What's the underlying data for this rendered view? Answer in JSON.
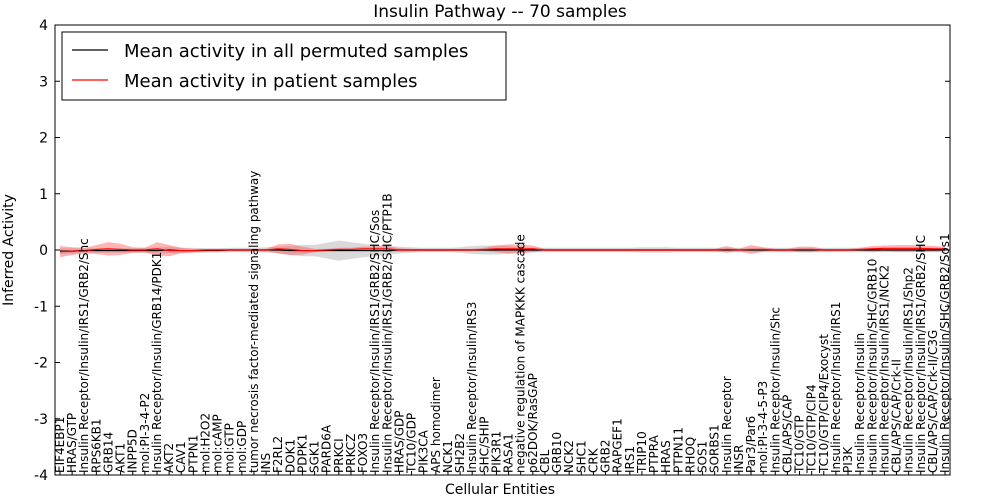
{
  "chart_data": {
    "type": "line",
    "title": "Insulin Pathway -- 70 samples",
    "xlabel": "Cellular Entities",
    "ylabel": "Inferred Activity",
    "ylim": [
      -4,
      4
    ],
    "yticks": [
      -4,
      -3,
      -2,
      -1,
      0,
      1,
      2,
      3,
      4
    ],
    "legend_position": "top-left",
    "categories": [
      "EIF4EBP1",
      "HRAS/GTP",
      "Insulin Receptor/Insulin/IRS1/GRB2/Shc",
      "RPS6KB1",
      "GRB14",
      "AKT1",
      "INPP5D",
      "mol:PI-3-4-P2",
      "Insulin Receptor/Insulin/GRB14/PDK1",
      "AKT2",
      "CAV1",
      "PTPN1",
      "mol:H2O2",
      "mol:cAMP",
      "mol:GTP",
      "mol:GDP",
      "tumor necrosis factor-mediated signaling pathway",
      "INS",
      "F2RL2",
      "DOK1",
      "PDPK1",
      "SGK1",
      "PARD6A",
      "PRKCI",
      "PRKCZ",
      "FOXO3",
      "Insulin Receptor/Insulin/IRS1/GRB2/SHC/Sos",
      "Insulin Receptor/Insulin/IRS1/GRB2/SHC/PTP1B",
      "HRAS/GDP",
      "TC10/GDP",
      "PIK3CA",
      "APS homodimer",
      "NCK1",
      "SH2B2",
      "Insulin Receptor/Insulin/IRS3",
      "SHC/SHIP",
      "PIK3R1",
      "RASA1",
      "negative regulation of MAPKKK cascade",
      "p62DOK/RasGAP",
      "CBL",
      "GRB10",
      "NCK2",
      "SHC1",
      "CRK",
      "GRB2",
      "RAPGEF1",
      "IRS1",
      "TRIP10",
      "PTPRA",
      "HRAS",
      "PTPN11",
      "RHOQ",
      "SOS1",
      "SORBS1",
      "Insulin Receptor",
      "INSR",
      "Par3/Par6",
      "mol:PI-3-4-5-P3",
      "Insulin Receptor/Insulin/Shc",
      "CBL/APS/CAP",
      "TC10/GTP",
      "TC10/GTP/CIP4",
      "TC10/GTP/CIP4/Exocyst",
      "Insulin Receptor/Insulin/IRS1",
      "PI3K",
      "Insulin Receptor/Insulin",
      "Insulin Receptor/Insulin/SHC/GRB10",
      "Insulin Receptor/Insulin/IRS1/NCK2",
      "CBL/APS/CAP/Crk-II",
      "Insulin Receptor/Insulin/IRS1/Shp2",
      "Insulin Receptor/Insulin/IRS1/GRB2/SHC",
      "CBL/APS/CAP/Crk-II/C3G",
      "Insulin Receptor/Insulin/SHC/GRB2/Sos1"
    ],
    "series": [
      {
        "name": "Mean activity in all permuted samples",
        "color": "#000000",
        "values": [
          -0.02,
          -0.02,
          -0.01,
          -0.01,
          -0.01,
          -0.01,
          -0.01,
          -0.01,
          -0.01,
          0,
          -0.01,
          -0.01,
          -0.01,
          -0.01,
          0,
          0,
          0,
          0,
          0,
          -0.01,
          -0.01,
          -0.01,
          -0.01,
          -0.01,
          -0.01,
          -0.01,
          -0.01,
          -0.01,
          0,
          0,
          0,
          0,
          0,
          0,
          0,
          0,
          0,
          0,
          0,
          0,
          0,
          0,
          0,
          0,
          0,
          0,
          0,
          0,
          0,
          0,
          0,
          0,
          0,
          0,
          0,
          0,
          0,
          0,
          0,
          0,
          0,
          0,
          0,
          0,
          0,
          0,
          0,
          0,
          0,
          0,
          0,
          0,
          0,
          0
        ],
        "band": [
          0.05,
          0.05,
          0.04,
          0.04,
          0.04,
          0.04,
          0.04,
          0.05,
          0.05,
          0.06,
          0.05,
          0.05,
          0.04,
          0.04,
          0.04,
          0.04,
          0.04,
          0.05,
          0.06,
          0.08,
          0.1,
          0.1,
          0.14,
          0.18,
          0.15,
          0.12,
          0.1,
          0.08,
          0.06,
          0.05,
          0.04,
          0.04,
          0.04,
          0.05,
          0.07,
          0.08,
          0.08,
          0.07,
          0.05,
          0.04,
          0.04,
          0.04,
          0.04,
          0.04,
          0.04,
          0.04,
          0.04,
          0.04,
          0.05,
          0.05,
          0.05,
          0.04,
          0.04,
          0.04,
          0.04,
          0.04,
          0.04,
          0.04,
          0.04,
          0.04,
          0.04,
          0.04,
          0.04,
          0.04,
          0.04,
          0.04,
          0.04,
          0.04,
          0.04,
          0.04,
          0.04,
          0.04,
          0.04,
          0.04
        ]
      },
      {
        "name": "Mean activity in patient samples",
        "color": "#ff0000",
        "values": [
          -0.03,
          -0.02,
          -0.01,
          0.01,
          0.02,
          0.01,
          0,
          0,
          0.02,
          -0.01,
          -0.01,
          -0.01,
          0,
          0,
          0,
          0,
          0,
          0,
          0.02,
          0.01,
          -0.01,
          -0.01,
          0,
          0.01,
          0.01,
          0.02,
          0.02,
          0.02,
          0,
          0,
          0,
          0,
          0,
          0,
          0,
          0.01,
          0.02,
          0.02,
          0.02,
          0.02,
          0,
          0,
          0,
          0,
          0,
          0,
          0,
          0,
          0,
          0,
          0,
          0,
          0,
          0,
          0,
          0.01,
          0,
          0.01,
          0.01,
          0,
          0,
          0.01,
          0.01,
          0,
          0,
          0,
          0.01,
          0.02,
          0.03,
          0.03,
          0.03,
          0.03,
          0.02,
          0.02
        ],
        "band": [
          0.1,
          0.07,
          0.05,
          0.08,
          0.12,
          0.1,
          0.05,
          0.04,
          0.12,
          0.1,
          0.05,
          0.03,
          0.02,
          0.02,
          0.02,
          0.02,
          0.02,
          0.02,
          0.08,
          0.1,
          0.07,
          0.03,
          0.02,
          0.03,
          0.03,
          0.04,
          0.04,
          0.05,
          0.03,
          0.02,
          0.02,
          0.02,
          0.02,
          0.02,
          0.02,
          0.03,
          0.06,
          0.08,
          0.08,
          0.06,
          0.02,
          0.02,
          0.02,
          0.02,
          0.02,
          0.02,
          0.02,
          0.02,
          0.02,
          0.02,
          0.02,
          0.02,
          0.02,
          0.02,
          0.02,
          0.06,
          0.02,
          0.08,
          0.04,
          0.02,
          0.02,
          0.05,
          0.05,
          0.02,
          0.02,
          0.02,
          0.03,
          0.05,
          0.05,
          0.06,
          0.06,
          0.06,
          0.05,
          0.04
        ]
      }
    ]
  }
}
